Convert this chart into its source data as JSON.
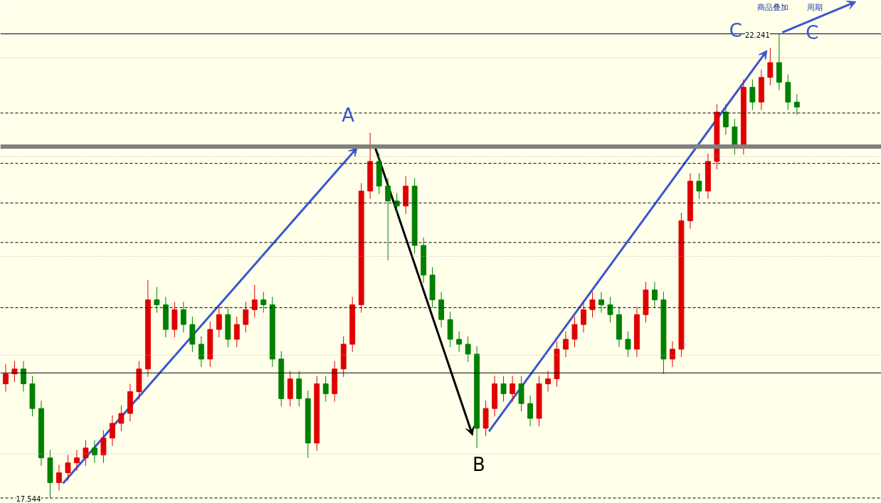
{
  "chart_data": {
    "type": "candlestick",
    "categories": [
      null,
      null,
      null,
      null,
      null,
      null,
      null,
      null,
      null,
      null,
      null,
      null,
      null,
      null,
      null,
      null,
      null,
      null,
      null,
      null,
      null,
      null,
      null,
      null,
      null,
      null,
      null,
      null,
      null,
      null,
      null,
      null,
      null,
      null,
      null,
      null,
      null,
      null,
      null,
      null,
      null,
      null,
      null,
      null,
      null,
      null,
      null,
      null,
      null,
      null,
      null,
      null,
      null,
      null,
      null,
      null,
      null,
      null,
      null,
      null,
      null,
      null,
      null,
      null,
      null,
      null,
      null,
      null,
      null,
      null,
      null,
      null,
      null,
      null,
      null,
      null,
      null,
      null,
      null,
      null,
      null,
      null,
      null,
      null,
      null,
      null,
      null,
      null,
      null,
      null
    ],
    "ohlc": [
      [
        18.7,
        18.9,
        18.62,
        18.8
      ],
      [
        18.8,
        18.93,
        18.72,
        18.85
      ],
      [
        18.85,
        18.93,
        18.62,
        18.7
      ],
      [
        18.7,
        18.78,
        18.37,
        18.45
      ],
      [
        18.45,
        18.53,
        17.87,
        17.95
      ],
      [
        17.95,
        18.03,
        17.544,
        17.7
      ],
      [
        17.7,
        17.88,
        17.62,
        17.8
      ],
      [
        17.8,
        17.98,
        17.72,
        17.9
      ],
      [
        17.9,
        18.03,
        17.82,
        17.95
      ],
      [
        17.95,
        18.13,
        17.87,
        18.05
      ],
      [
        18.05,
        18.13,
        17.9,
        17.98
      ],
      [
        17.98,
        18.23,
        17.9,
        18.15
      ],
      [
        18.15,
        18.38,
        18.07,
        18.3
      ],
      [
        18.3,
        18.48,
        18.22,
        18.4
      ],
      [
        18.4,
        18.7,
        18.32,
        18.62
      ],
      [
        18.62,
        18.93,
        18.54,
        18.85
      ],
      [
        18.85,
        19.75,
        18.77,
        19.55
      ],
      [
        19.55,
        19.68,
        19.42,
        19.5
      ],
      [
        19.5,
        19.58,
        19.17,
        19.25
      ],
      [
        19.25,
        19.53,
        19.17,
        19.45
      ],
      [
        19.45,
        19.53,
        19.22,
        19.3
      ],
      [
        19.3,
        19.38,
        19.02,
        19.1
      ],
      [
        19.1,
        19.18,
        18.87,
        18.95
      ],
      [
        18.95,
        19.33,
        18.87,
        19.25
      ],
      [
        19.25,
        19.48,
        19.17,
        19.4
      ],
      [
        19.4,
        19.48,
        19.07,
        19.15
      ],
      [
        19.15,
        19.38,
        19.07,
        19.3
      ],
      [
        19.3,
        19.53,
        19.22,
        19.45
      ],
      [
        19.45,
        19.7,
        19.37,
        19.55
      ],
      [
        19.55,
        19.63,
        19.42,
        19.5
      ],
      [
        19.5,
        19.58,
        18.87,
        18.95
      ],
      [
        18.95,
        19.03,
        18.47,
        18.55
      ],
      [
        18.55,
        18.83,
        18.47,
        18.75
      ],
      [
        18.75,
        18.83,
        18.47,
        18.55
      ],
      [
        18.55,
        18.63,
        17.95,
        18.1
      ],
      [
        18.1,
        18.78,
        18.02,
        18.7
      ],
      [
        18.7,
        18.78,
        18.52,
        18.6
      ],
      [
        18.6,
        18.93,
        18.52,
        18.85
      ],
      [
        18.85,
        19.18,
        18.77,
        19.1
      ],
      [
        19.1,
        19.58,
        19.02,
        19.5
      ],
      [
        19.5,
        20.73,
        19.42,
        20.65
      ],
      [
        20.65,
        21.24,
        20.57,
        20.95
      ],
      [
        20.95,
        21.03,
        20.62,
        20.7
      ],
      [
        20.7,
        20.78,
        19.95,
        20.55
      ],
      [
        20.55,
        20.63,
        20.42,
        20.5
      ],
      [
        20.5,
        20.8,
        20.42,
        20.7
      ],
      [
        20.7,
        20.78,
        20.02,
        20.1
      ],
      [
        20.1,
        20.18,
        19.72,
        19.8
      ],
      [
        19.8,
        19.88,
        19.47,
        19.55
      ],
      [
        19.55,
        19.63,
        19.27,
        19.35
      ],
      [
        19.35,
        19.43,
        19.07,
        19.15
      ],
      [
        19.15,
        19.23,
        19.02,
        19.1
      ],
      [
        19.1,
        19.18,
        18.92,
        19.0
      ],
      [
        19.0,
        19.08,
        18.05,
        18.25
      ],
      [
        18.25,
        18.53,
        18.17,
        18.45
      ],
      [
        18.45,
        18.78,
        18.37,
        18.7
      ],
      [
        18.7,
        18.78,
        18.52,
        18.6
      ],
      [
        18.6,
        18.78,
        18.52,
        18.7
      ],
      [
        18.7,
        18.78,
        18.42,
        18.5
      ],
      [
        18.5,
        18.58,
        18.27,
        18.35
      ],
      [
        18.35,
        18.78,
        18.27,
        18.7
      ],
      [
        18.7,
        18.83,
        18.62,
        18.75
      ],
      [
        18.75,
        19.13,
        18.67,
        19.05
      ],
      [
        19.05,
        19.23,
        18.97,
        19.15
      ],
      [
        19.15,
        19.38,
        19.07,
        19.3
      ],
      [
        19.3,
        19.53,
        19.22,
        19.45
      ],
      [
        19.45,
        19.63,
        19.37,
        19.55
      ],
      [
        19.55,
        19.63,
        19.42,
        19.5
      ],
      [
        19.5,
        19.58,
        19.32,
        19.4
      ],
      [
        19.4,
        19.48,
        19.07,
        19.15
      ],
      [
        19.15,
        19.23,
        18.97,
        19.05
      ],
      [
        19.05,
        19.48,
        18.97,
        19.4
      ],
      [
        19.4,
        19.73,
        19.32,
        19.65
      ],
      [
        19.65,
        19.73,
        19.47,
        19.55
      ],
      [
        19.55,
        19.63,
        18.8,
        18.95
      ],
      [
        18.95,
        19.13,
        18.87,
        19.05
      ],
      [
        19.05,
        20.43,
        18.97,
        20.35
      ],
      [
        20.35,
        20.83,
        20.27,
        20.75
      ],
      [
        20.75,
        20.83,
        20.57,
        20.65
      ],
      [
        20.65,
        21.03,
        20.57,
        20.95
      ],
      [
        20.95,
        21.53,
        20.87,
        21.45
      ],
      [
        21.45,
        21.53,
        21.22,
        21.3
      ],
      [
        21.3,
        21.38,
        21.02,
        21.1
      ],
      [
        21.1,
        21.78,
        21.02,
        21.7
      ],
      [
        21.7,
        21.78,
        21.47,
        21.55
      ],
      [
        21.55,
        21.88,
        21.47,
        21.8
      ],
      [
        21.8,
        22.1,
        21.72,
        21.95
      ],
      [
        21.95,
        22.241,
        21.67,
        21.75
      ],
      [
        21.75,
        21.83,
        21.47,
        21.55
      ],
      [
        21.55,
        21.63,
        21.42,
        21.5
      ]
    ],
    "colors": [
      "#e00000",
      "#e00000",
      "#008000",
      "#008000",
      "#008000",
      "#008000",
      "#e00000",
      "#e00000",
      "#e00000",
      "#e00000",
      "#008000",
      "#e00000",
      "#e00000",
      "#e00000",
      "#e00000",
      "#e00000",
      "#e00000",
      "#008000",
      "#008000",
      "#e00000",
      "#008000",
      "#008000",
      "#008000",
      "#e00000",
      "#e00000",
      "#008000",
      "#e00000",
      "#e00000",
      "#e00000",
      "#008000",
      "#008000",
      "#008000",
      "#e00000",
      "#008000",
      "#008000",
      "#e00000",
      "#008000",
      "#e00000",
      "#e00000",
      "#e00000",
      "#e00000",
      "#e00000",
      "#008000",
      "#008000",
      "#008000",
      "#e00000",
      "#008000",
      "#008000",
      "#008000",
      "#008000",
      "#008000",
      "#008000",
      "#008000",
      "#008000",
      "#e00000",
      "#e00000",
      "#008000",
      "#e00000",
      "#008000",
      "#008000",
      "#e00000",
      "#e00000",
      "#e00000",
      "#e00000",
      "#e00000",
      "#e00000",
      "#e00000",
      "#008000",
      "#008000",
      "#008000",
      "#008000",
      "#e00000",
      "#e00000",
      "#008000",
      "#008000",
      "#e00000",
      "#e00000",
      "#e00000",
      "#008000",
      "#e00000",
      "#e00000",
      "#008000",
      "#008000",
      "#e00000",
      "#008000",
      "#e00000",
      "#e00000",
      "#008000",
      "#008000",
      "#008000"
    ],
    "ylim": [
      17.49,
      22.58
    ],
    "tick_labels": false,
    "grid": false,
    "ref_lines": [
      {
        "axis": "y",
        "value": 22.241,
        "color": "#000000",
        "line_style": "solid"
      },
      {
        "axis": "y",
        "value": 22.0,
        "color": "#b0b0b0",
        "line_style": "dotted"
      },
      {
        "axis": "y",
        "value": 21.44,
        "color": "#000000",
        "line_style": "dashed"
      },
      {
        "axis": "y",
        "value": 21.1,
        "color": "#808080"
      },
      {
        "axis": "y",
        "value": 21.0,
        "color": "#b0b0b0",
        "line_style": "dotted"
      },
      {
        "axis": "y",
        "value": 20.93,
        "color": "#000000",
        "line_style": "dashed"
      },
      {
        "axis": "y",
        "value": 20.53,
        "color": "#000000",
        "line_style": "dashed"
      },
      {
        "axis": "y",
        "value": 20.13,
        "color": "#000000",
        "line_style": "dashed"
      },
      {
        "axis": "y",
        "value": 19.99,
        "color": "#b0b0b0",
        "line_style": "dotted"
      },
      {
        "axis": "y",
        "value": 19.47,
        "color": "#000000",
        "line_style": "dashed"
      },
      {
        "axis": "y",
        "value": 18.99,
        "color": "#b0b0b0",
        "line_style": "dotted"
      },
      {
        "axis": "y",
        "value": 18.81,
        "color": "#000000",
        "line_style": "solid"
      },
      {
        "axis": "y",
        "value": 17.99,
        "color": "#b0b0b0",
        "line_style": "dotted"
      },
      {
        "axis": "y",
        "value": 17.544,
        "color": "#000000",
        "line_style": "dashed"
      }
    ],
    "annotations": [
      {
        "text": "17.544",
        "y": 17.544
      },
      {
        "text": "22.241",
        "y": 22.241
      },
      "A",
      "B",
      "C",
      "C",
      "商品叠加",
      "周期"
    ]
  }
}
